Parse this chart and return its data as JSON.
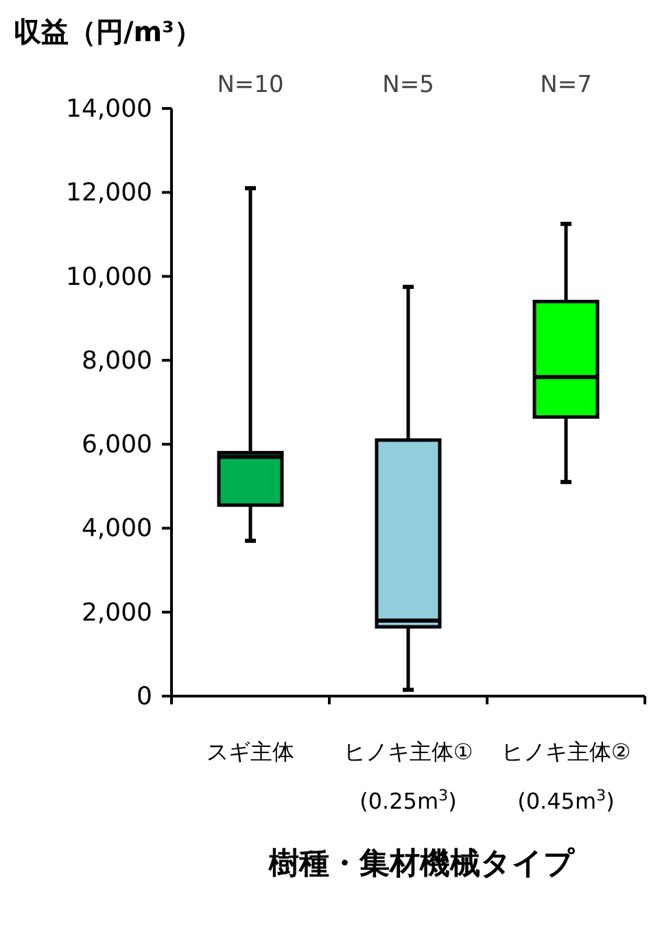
{
  "chart_data": {
    "type": "box",
    "ylabel": "収益（円/m³）",
    "xlabel": "樹種・集材機械タイプ",
    "categories": [
      "スギ主体",
      "ヒノキ主体① (0.25m$^{3}$)",
      "ヒノキ主体② (0.45m$^{3}$)"
    ],
    "colors": [
      "#00b050",
      "#92cddc",
      "#00ff00"
    ],
    "boxes": [
      {
        "low": 3700,
        "q1": 4550,
        "median": 5700,
        "q3": 5800,
        "high": 12100
      },
      {
        "low": 150,
        "q1": 1650,
        "median": 1800,
        "q3": 6100,
        "high": 9750
      },
      {
        "low": 5100,
        "q1": 6650,
        "median": 7600,
        "q3": 9400,
        "high": 11250
      }
    ],
    "ylim": [
      0,
      14000
    ],
    "yticks": [
      {
        "value": 0,
        "label": "0"
      },
      {
        "value": 2000,
        "label": "2,000"
      },
      {
        "value": 4000,
        "label": "4,000"
      },
      {
        "value": 6000,
        "label": "6,000"
      },
      {
        "value": 8000,
        "label": "8,000"
      },
      {
        "value": 10000,
        "label": "10,000"
      },
      {
        "value": 12000,
        "label": "12,000"
      },
      {
        "value": 14000,
        "label": "14,000"
      }
    ],
    "annotations": [
      "N=10",
      "N=5",
      "N=7"
    ],
    "grid": false
  }
}
